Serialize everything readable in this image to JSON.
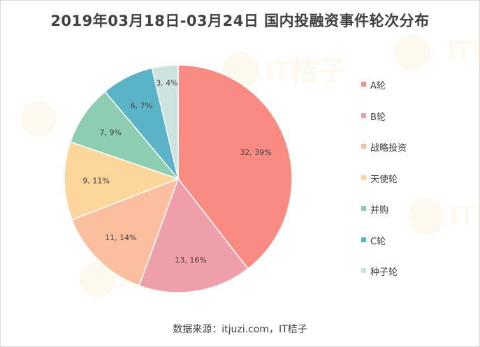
{
  "chart_data": {
    "type": "pie",
    "title": "2019年03月18日-03月24日 国内投融资事件轮次分布",
    "categories": [
      "A轮",
      "B轮",
      "战略投资",
      "天使轮",
      "并购",
      "C轮",
      "种子轮"
    ],
    "values": [
      32,
      13,
      11,
      9,
      7,
      6,
      3
    ],
    "percent_labels": [
      "39%",
      "16%",
      "14%",
      "11%",
      "9%",
      "7%",
      "4%"
    ],
    "data_labels": [
      "32, 39%",
      "13, 16%",
      "11, 14%",
      "9, 11%",
      "7, 9%",
      "6, 7%",
      "3, 4%"
    ],
    "colors": [
      "#fa8b82",
      "#ee9fa9",
      "#fbbf9f",
      "#fcd69a",
      "#8dceb3",
      "#5ab3c6",
      "#cce3df"
    ],
    "legend_position": "right",
    "start_angle": "12 o'clock, clockwise"
  },
  "source": "数据来源：itjuzi.com，IT桔子",
  "watermark": "IT桔子"
}
